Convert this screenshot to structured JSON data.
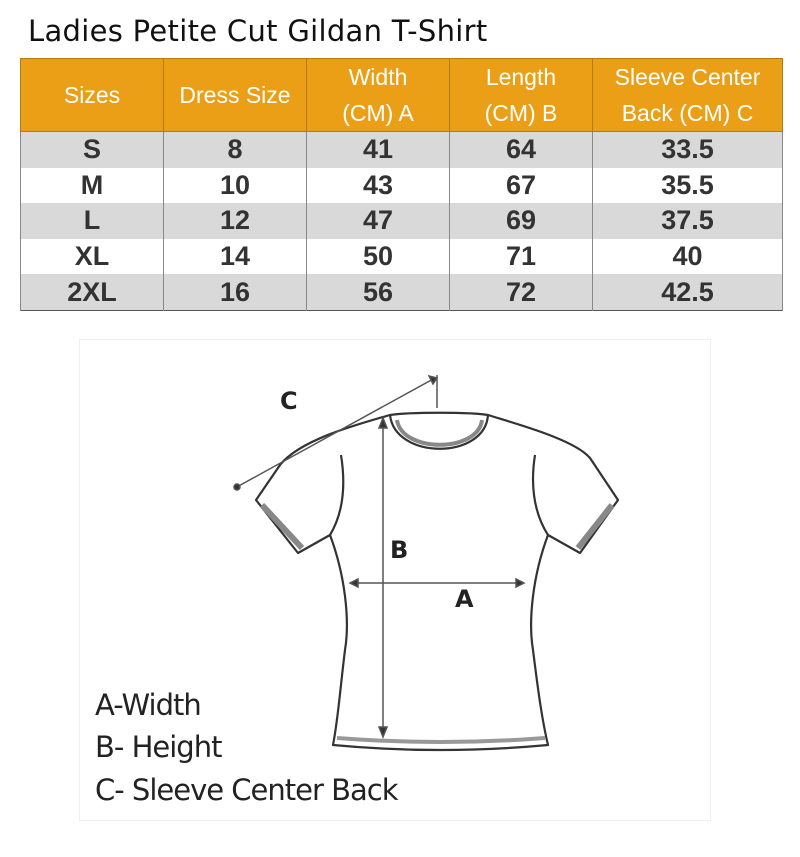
{
  "title": "Ladies Petite Cut Gildan T-Shirt",
  "table": {
    "headers": [
      [
        "Sizes"
      ],
      [
        "Dress Size"
      ],
      [
        "Width",
        "(CM) A"
      ],
      [
        "Length",
        "(CM) B"
      ],
      [
        "Sleeve Center",
        "Back (CM) C"
      ]
    ],
    "rows": [
      [
        "S",
        "8",
        "41",
        "64",
        "33.5"
      ],
      [
        "M",
        "10",
        "43",
        "67",
        "35.5"
      ],
      [
        "L",
        "12",
        "47",
        "69",
        "37.5"
      ],
      [
        "XL",
        "14",
        "50",
        "71",
        "40"
      ],
      [
        "2XL",
        "16",
        "56",
        "72",
        "42.5"
      ]
    ],
    "header_color": "#eb9f16",
    "stripe_color": "#d9d9d9"
  },
  "diagram": {
    "labels": {
      "a": "A",
      "b": "B",
      "c": "C"
    },
    "legend": [
      "A-Width",
      "B- Height",
      "C- Sleeve Center Back"
    ]
  }
}
